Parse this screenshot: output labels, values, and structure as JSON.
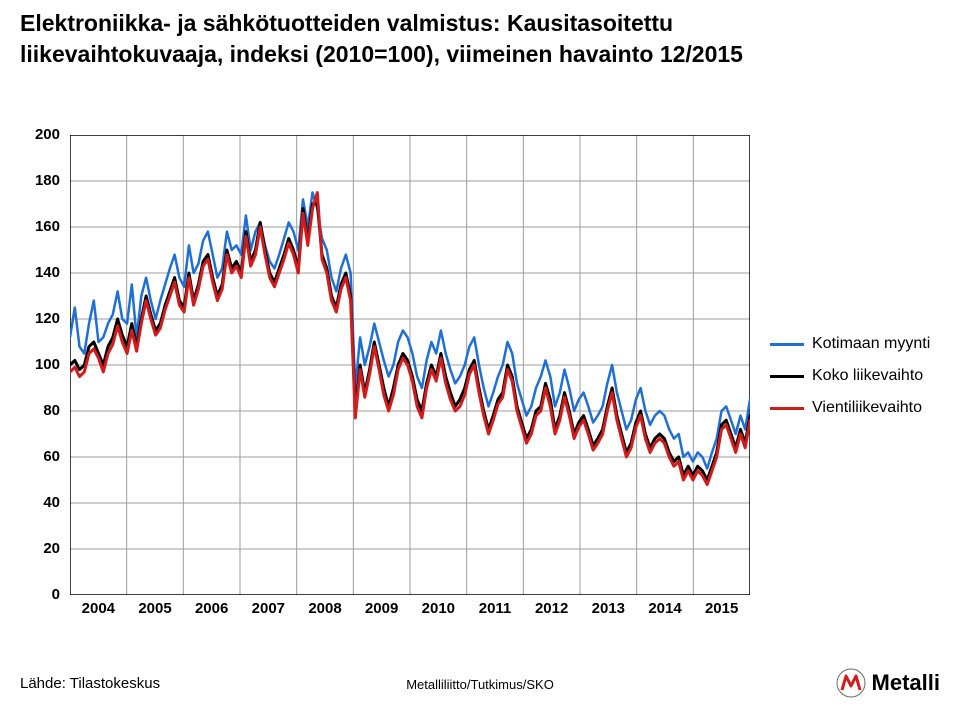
{
  "title": {
    "line1": "Elektroniikka- ja sähkötuotteiden valmistus: Kausitasoitettu",
    "line2": "liikevaihtokuvaaja, indeksi (2010=100), viimeinen havainto 12/2015",
    "fontsize": 23,
    "color": "#000000",
    "weight": "bold"
  },
  "chart": {
    "type": "line",
    "x_range_months": 144,
    "x_labels": [
      "2004",
      "2005",
      "2006",
      "2007",
      "2008",
      "2009",
      "2010",
      "2011",
      "2012",
      "2013",
      "2014",
      "2015"
    ],
    "x_label_fontsize": 15,
    "y_ticks": [
      0,
      20,
      40,
      60,
      80,
      100,
      120,
      140,
      160,
      180,
      200
    ],
    "y_label_fontsize": 15,
    "ylim": [
      0,
      200
    ],
    "background_color": "#ffffff",
    "grid_color": "#9d9d9d",
    "grid_width": 1,
    "axis_color": "#000000",
    "series": [
      {
        "name": "Kotimaan myynti",
        "color": "#1f6fd4",
        "width": 2.5,
        "values": [
          112,
          125,
          108,
          105,
          118,
          128,
          110,
          112,
          118,
          122,
          132,
          120,
          118,
          135,
          112,
          130,
          138,
          128,
          120,
          128,
          135,
          142,
          148,
          138,
          134,
          152,
          140,
          144,
          154,
          158,
          148,
          138,
          142,
          158,
          150,
          152,
          148,
          165,
          150,
          158,
          162,
          152,
          145,
          142,
          148,
          155,
          162,
          158,
          150,
          172,
          160,
          175,
          168,
          155,
          150,
          138,
          132,
          142,
          148,
          140,
          90,
          112,
          100,
          108,
          118,
          110,
          102,
          95,
          100,
          110,
          115,
          112,
          105,
          95,
          90,
          102,
          110,
          105,
          115,
          105,
          98,
          92,
          95,
          100,
          108,
          112,
          100,
          90,
          82,
          88,
          95,
          100,
          110,
          105,
          92,
          85,
          78,
          82,
          90,
          95,
          102,
          95,
          82,
          88,
          98,
          90,
          80,
          85,
          88,
          82,
          75,
          78,
          82,
          92,
          100,
          88,
          80,
          72,
          76,
          85,
          90,
          80,
          74,
          78,
          80,
          78,
          72,
          68,
          70,
          60,
          62,
          58,
          62,
          60,
          55,
          62,
          68,
          80,
          82,
          76,
          70,
          78,
          72,
          85
        ]
      },
      {
        "name": "Koko liikevaihto",
        "color": "#000000",
        "width": 3.0,
        "values": [
          100,
          102,
          98,
          100,
          108,
          110,
          105,
          100,
          108,
          112,
          120,
          113,
          108,
          118,
          108,
          120,
          130,
          122,
          115,
          118,
          126,
          132,
          138,
          128,
          125,
          140,
          128,
          135,
          145,
          148,
          138,
          130,
          135,
          150,
          142,
          145,
          140,
          158,
          145,
          150,
          162,
          150,
          140,
          136,
          142,
          148,
          155,
          150,
          142,
          168,
          154,
          170,
          170,
          148,
          142,
          130,
          125,
          135,
          140,
          130,
          80,
          100,
          88,
          98,
          110,
          100,
          90,
          82,
          90,
          100,
          105,
          102,
          95,
          85,
          80,
          92,
          100,
          95,
          105,
          95,
          88,
          82,
          85,
          90,
          98,
          102,
          90,
          80,
          72,
          78,
          85,
          88,
          100,
          95,
          82,
          75,
          68,
          72,
          80,
          82,
          92,
          85,
          72,
          78,
          88,
          80,
          70,
          75,
          78,
          72,
          65,
          68,
          72,
          82,
          90,
          78,
          70,
          62,
          66,
          75,
          80,
          70,
          64,
          68,
          70,
          68,
          62,
          58,
          60,
          52,
          56,
          52,
          56,
          54,
          50,
          56,
          62,
          74,
          76,
          70,
          64,
          72,
          66,
          78
        ]
      },
      {
        "name": "Vientiliikevaihto",
        "color": "#d11c1c",
        "width": 3.0,
        "values": [
          97,
          99,
          95,
          97,
          105,
          107,
          103,
          97,
          105,
          109,
          117,
          110,
          105,
          115,
          106,
          118,
          128,
          120,
          113,
          116,
          124,
          130,
          136,
          126,
          123,
          138,
          126,
          133,
          143,
          146,
          136,
          128,
          133,
          148,
          140,
          143,
          138,
          156,
          143,
          148,
          160,
          148,
          138,
          134,
          140,
          146,
          153,
          148,
          140,
          166,
          152,
          168,
          175,
          146,
          140,
          128,
          123,
          133,
          138,
          128,
          77,
          98,
          86,
          96,
          108,
          98,
          87,
          80,
          87,
          98,
          103,
          100,
          93,
          82,
          77,
          90,
          98,
          93,
          103,
          92,
          85,
          80,
          82,
          87,
          96,
          100,
          88,
          78,
          70,
          76,
          83,
          86,
          98,
          93,
          80,
          73,
          66,
          70,
          78,
          80,
          90,
          82,
          70,
          76,
          86,
          78,
          68,
          73,
          76,
          70,
          63,
          66,
          70,
          80,
          88,
          76,
          68,
          60,
          64,
          73,
          78,
          68,
          62,
          66,
          68,
          66,
          60,
          56,
          58,
          50,
          54,
          50,
          54,
          52,
          48,
          54,
          60,
          72,
          74,
          68,
          62,
          70,
          64,
          76
        ]
      }
    ]
  },
  "legend": {
    "fontsize": 16,
    "items": [
      {
        "label": "Kotimaan myynti",
        "color": "#1f6fd4",
        "width": 3
      },
      {
        "label": "Koko liikevaihto",
        "color": "#000000",
        "width": 3
      },
      {
        "label": "Vientiliikevaihto",
        "color": "#d11c1c",
        "width": 3
      }
    ]
  },
  "footer": {
    "left": "Lähde: Tilastokeskus",
    "center": "Metalliliitto/Tutkimus/SKO",
    "left_fontsize": 15,
    "center_fontsize": 13,
    "logo_text": "Metalli"
  }
}
